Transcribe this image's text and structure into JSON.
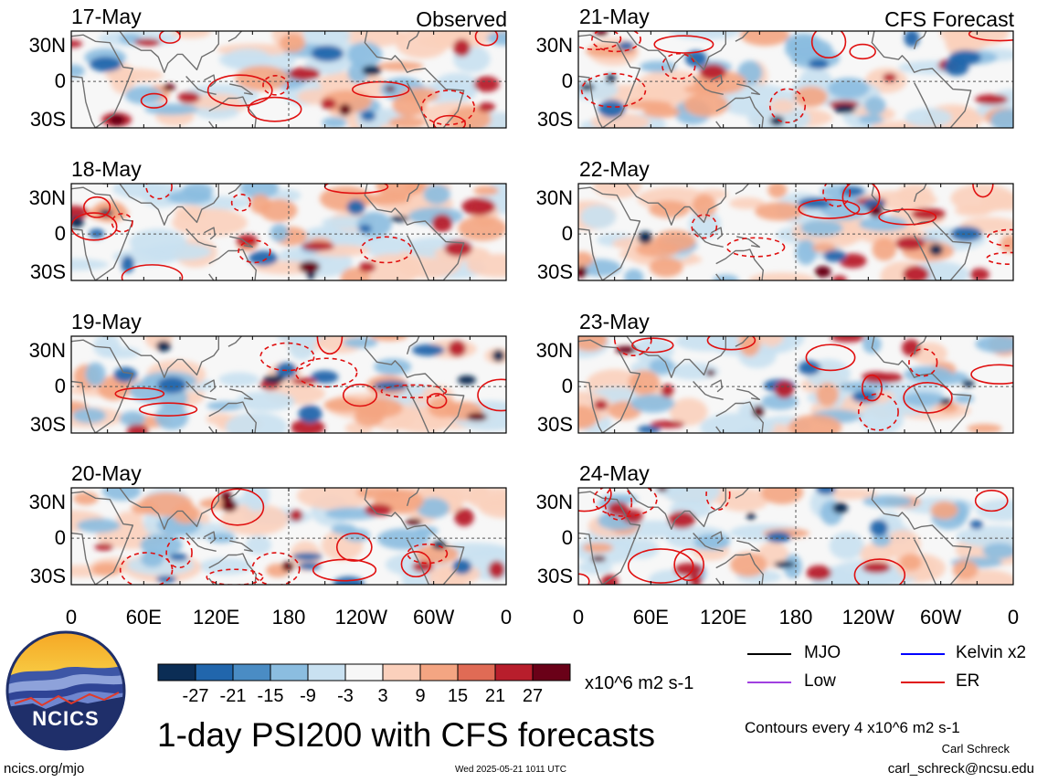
{
  "title": "1-day PSI200 with CFS forecasts",
  "site": "ncics.org/mjo",
  "timestamp": "Wed 2025-05-21 1011 UTC",
  "author": "Carl Schreck",
  "email": "carl_schreck@ncsu.edu",
  "contour_note": "Contours every 4 x10^6 m2 s-1",
  "units": "x10^6 m2 s-1",
  "logo_text": "NCICS",
  "columns": [
    {
      "label": "Observed",
      "dates": [
        "17-May",
        "18-May",
        "19-May",
        "20-May"
      ]
    },
    {
      "label": "CFS Forecast",
      "dates": [
        "21-May",
        "22-May",
        "23-May",
        "24-May"
      ]
    }
  ],
  "lat_ticks": [
    "30N",
    "0",
    "30S"
  ],
  "lon_ticks": [
    "0",
    "60E",
    "120E",
    "180",
    "120W",
    "60W",
    "0"
  ],
  "colorbar": {
    "colors": [
      "#0b2d55",
      "#2166ac",
      "#4a8cc4",
      "#8bbde0",
      "#c9e1f1",
      "#f7f7f7",
      "#fbd0bc",
      "#f4a582",
      "#e06b55",
      "#b81e2c",
      "#6a0118"
    ],
    "labels": [
      "-27",
      "-21",
      "-15",
      "-9",
      "-3",
      "3",
      "9",
      "15",
      "21",
      "27"
    ]
  },
  "legend": [
    {
      "label": "MJO",
      "color": "#000000"
    },
    {
      "label": "Kelvin x2",
      "color": "#0000ff"
    },
    {
      "label": "Low",
      "color": "#a040e0"
    },
    {
      "label": "ER",
      "color": "#e01010"
    }
  ]
}
